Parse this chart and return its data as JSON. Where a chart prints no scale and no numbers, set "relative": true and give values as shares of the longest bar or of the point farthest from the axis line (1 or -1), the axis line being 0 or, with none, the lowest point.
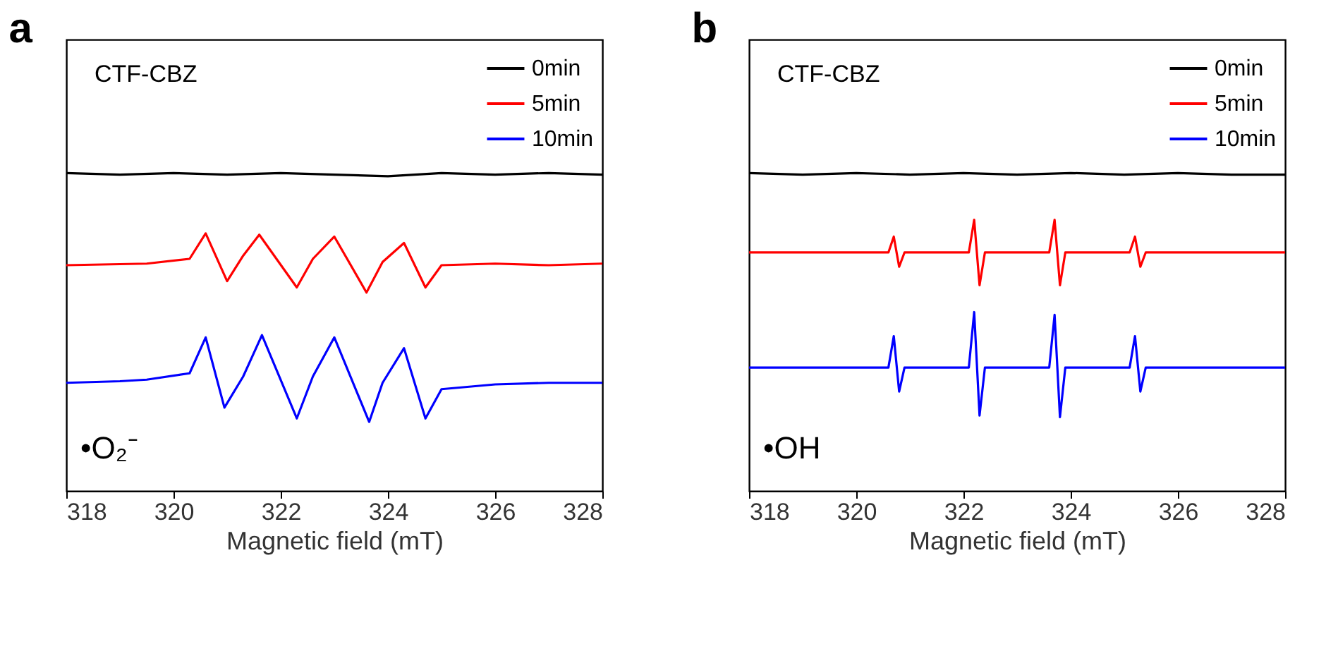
{
  "chart_data": [
    {
      "type": "line",
      "title": "a",
      "relative": true,
      "xlabel": "Magnetic field (mT)",
      "xlim": [
        318,
        328
      ],
      "xticks": [
        318,
        320,
        322,
        324,
        326,
        328
      ],
      "grid": false,
      "legend": "top right",
      "annotations": [
        "CTF-CBZ",
        "•O₂⁻"
      ],
      "series": [
        {
          "name": "0min",
          "color": "#000000",
          "x": [
            318,
            319,
            320,
            321,
            322,
            323,
            324,
            325,
            326,
            327,
            328
          ],
          "values": [
            1,
            0.995,
            1,
            0.995,
            1,
            0.995,
            0.99,
            1,
            0.995,
            1,
            0.995
          ]
        },
        {
          "name": "5min",
          "color": "#ff0000",
          "x": [
            318,
            319.5,
            320.3,
            320.6,
            321.0,
            321.3,
            321.6,
            322.3,
            322.6,
            323.0,
            323.6,
            323.9,
            324.3,
            324.7,
            325.0,
            326,
            327,
            328
          ],
          "values": [
            0.71,
            0.715,
            0.73,
            0.81,
            0.66,
            0.74,
            0.806,
            0.64,
            0.73,
            0.8,
            0.624,
            0.72,
            0.78,
            0.64,
            0.71,
            0.715,
            0.71,
            0.715
          ]
        },
        {
          "name": "10min",
          "color": "#0000ff",
          "x": [
            318,
            319,
            319.5,
            320.3,
            320.6,
            320.95,
            321.3,
            321.65,
            322.3,
            322.6,
            323.0,
            323.65,
            323.9,
            324.3,
            324.7,
            325.0,
            326,
            327,
            328
          ],
          "values": [
            0.34,
            0.345,
            0.35,
            0.37,
            0.483,
            0.262,
            0.36,
            0.49,
            0.228,
            0.36,
            0.483,
            0.217,
            0.34,
            0.449,
            0.228,
            0.32,
            0.335,
            0.34,
            0.34
          ]
        }
      ]
    },
    {
      "type": "line",
      "title": "b",
      "relative": true,
      "xlabel": "Magnetic field (mT)",
      "xlim": [
        318,
        328
      ],
      "xticks": [
        318,
        320,
        322,
        324,
        326,
        328
      ],
      "grid": false,
      "legend": "top right",
      "annotations": [
        "CTF-CBZ",
        "•OH"
      ],
      "series": [
        {
          "name": "0min",
          "color": "#000000",
          "x": [
            318,
            319,
            320,
            321,
            322,
            323,
            324,
            325,
            326,
            327,
            328
          ],
          "values": [
            1,
            0.995,
            1,
            0.995,
            1,
            0.995,
            1,
            0.995,
            1,
            0.995,
            0.995
          ]
        },
        {
          "name": "5min",
          "color": "#ff0000",
          "x": [
            318,
            320.6,
            320.7,
            320.8,
            320.9,
            322.1,
            322.2,
            322.3,
            322.4,
            323.6,
            323.7,
            323.8,
            323.9,
            325.1,
            325.2,
            325.3,
            325.4,
            328
          ],
          "values": [
            0.75,
            0.75,
            0.8,
            0.705,
            0.75,
            0.75,
            0.853,
            0.647,
            0.75,
            0.75,
            0.853,
            0.647,
            0.75,
            0.75,
            0.8,
            0.705,
            0.75,
            0.75
          ]
        },
        {
          "name": "10min",
          "color": "#0000ff",
          "x": [
            318,
            320.6,
            320.7,
            320.8,
            320.9,
            322.1,
            322.2,
            322.3,
            322.4,
            323.6,
            323.7,
            323.8,
            323.9,
            325.1,
            325.2,
            325.3,
            325.4,
            328
          ],
          "values": [
            0.388,
            0.388,
            0.487,
            0.3125,
            0.388,
            0.388,
            0.5625,
            0.237,
            0.388,
            0.388,
            0.554,
            0.232,
            0.388,
            0.388,
            0.487,
            0.3125,
            0.388,
            0.388
          ]
        }
      ]
    }
  ]
}
